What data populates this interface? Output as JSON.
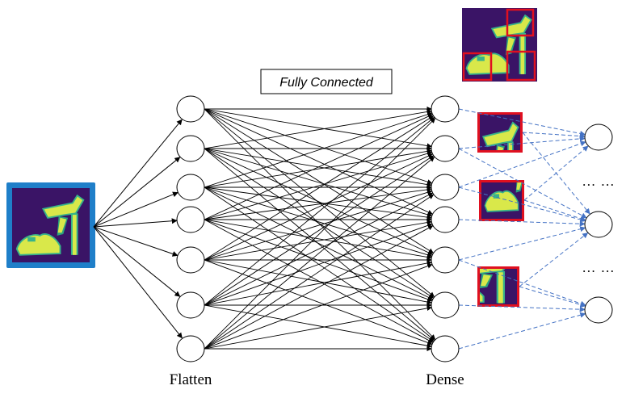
{
  "labels": {
    "fully_connected": "Fully Connected",
    "flatten": "Flatten",
    "dense": "Dense",
    "ellipsis_1": "… …",
    "ellipsis_2": "… …"
  },
  "colors": {
    "image_frame": "#1f7fc9",
    "patch_frame": "#e01020",
    "image_bg": "#3a1466",
    "shoe": "#d9e84a",
    "shoe_edge": "#37b38a",
    "dashed_link": "#4472c4"
  },
  "layers": {
    "flatten_nodes": 7,
    "dense_nodes": 7,
    "output_nodes": 3
  }
}
